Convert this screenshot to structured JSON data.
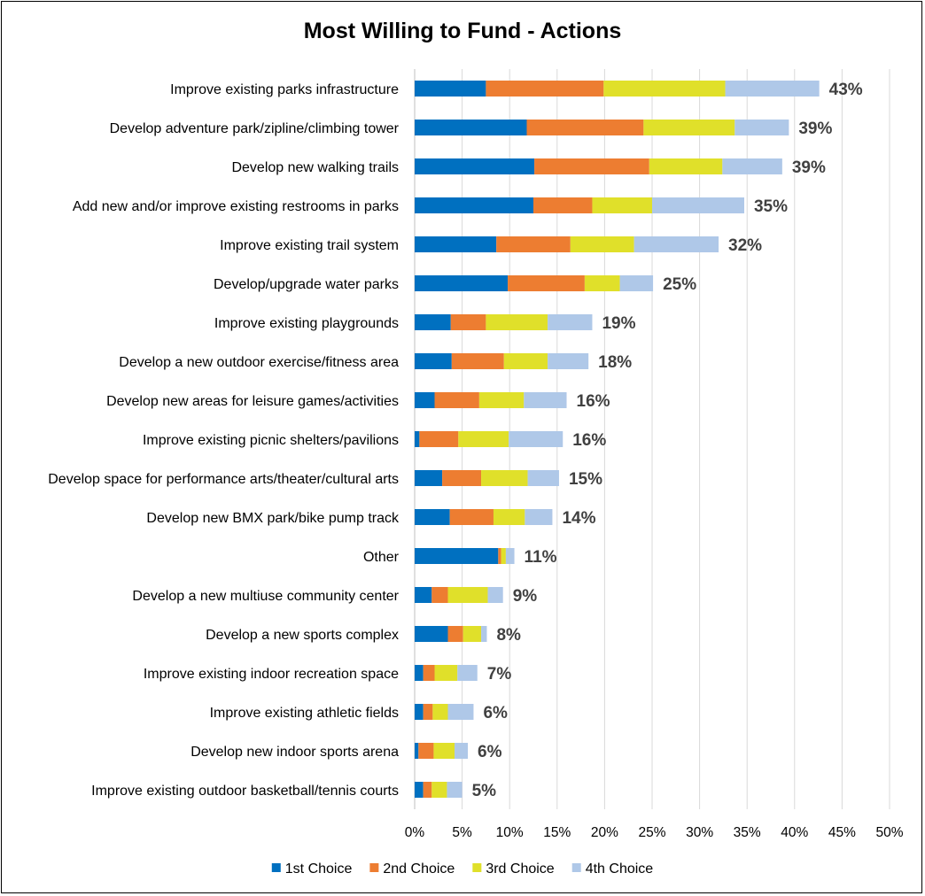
{
  "chart_data": {
    "type": "bar",
    "orientation": "horizontal",
    "stacked": true,
    "title": "Most Willing to Fund - Actions",
    "xlabel": "",
    "ylabel": "",
    "xlim": [
      0,
      50
    ],
    "x_ticks": [
      "0%",
      "5%",
      "10%",
      "15%",
      "20%",
      "25%",
      "30%",
      "35%",
      "40%",
      "45%",
      "50%"
    ],
    "grid": true,
    "legend_position": "bottom",
    "colors": [
      "#0070C0",
      "#ED7D31",
      "#E0E02A",
      "#AFC8E8"
    ],
    "categories": [
      "Improve existing parks infrastructure",
      "Develop adventure park/zipline/climbing tower",
      "Develop new walking trails",
      "Add new and/or improve existing restrooms in parks",
      "Improve existing trail system",
      "Develop/upgrade water parks",
      "Improve existing playgrounds",
      "Develop a new outdoor exercise/fitness area",
      "Develop new areas for leisure games/activities",
      "Improve existing picnic shelters/pavilions",
      "Develop space for performance arts/theater/cultural arts",
      "Develop new BMX park/bike pump track",
      "Other",
      "Develop a new multiuse community center",
      "Develop a new sports complex",
      "Improve existing indoor recreation space",
      "Improve existing athletic fields",
      "Develop new indoor sports arena",
      "Improve existing outdoor basketball/tennis courts"
    ],
    "series": [
      {
        "name": "1st Choice",
        "values": [
          7.5,
          11.8,
          12.6,
          12.5,
          8.6,
          9.8,
          3.8,
          3.9,
          2.1,
          0.5,
          2.9,
          3.7,
          8.8,
          1.8,
          3.5,
          0.9,
          0.9,
          0.4,
          0.9
        ]
      },
      {
        "name": "2nd Choice",
        "values": [
          12.4,
          12.3,
          12.1,
          6.2,
          7.8,
          8.1,
          3.7,
          5.5,
          4.7,
          4.1,
          4.1,
          4.6,
          0.3,
          1.7,
          1.6,
          1.2,
          1.0,
          1.6,
          0.9
        ]
      },
      {
        "name": "3rd Choice",
        "values": [
          12.8,
          9.6,
          7.7,
          6.3,
          6.7,
          3.7,
          6.5,
          4.6,
          4.7,
          5.3,
          4.9,
          3.3,
          0.5,
          4.2,
          1.9,
          2.4,
          1.6,
          2.2,
          1.6
        ]
      },
      {
        "name": "4th Choice",
        "values": [
          9.9,
          5.7,
          6.3,
          9.7,
          8.9,
          3.5,
          4.7,
          4.3,
          4.5,
          5.7,
          3.3,
          2.9,
          0.9,
          1.6,
          0.6,
          2.1,
          2.7,
          1.4,
          1.6
        ]
      }
    ],
    "totals": [
      "43%",
      "39%",
      "39%",
      "35%",
      "32%",
      "25%",
      "19%",
      "18%",
      "16%",
      "16%",
      "15%",
      "14%",
      "11%",
      "9%",
      "8%",
      "7%",
      "6%",
      "6%",
      "5%"
    ]
  }
}
